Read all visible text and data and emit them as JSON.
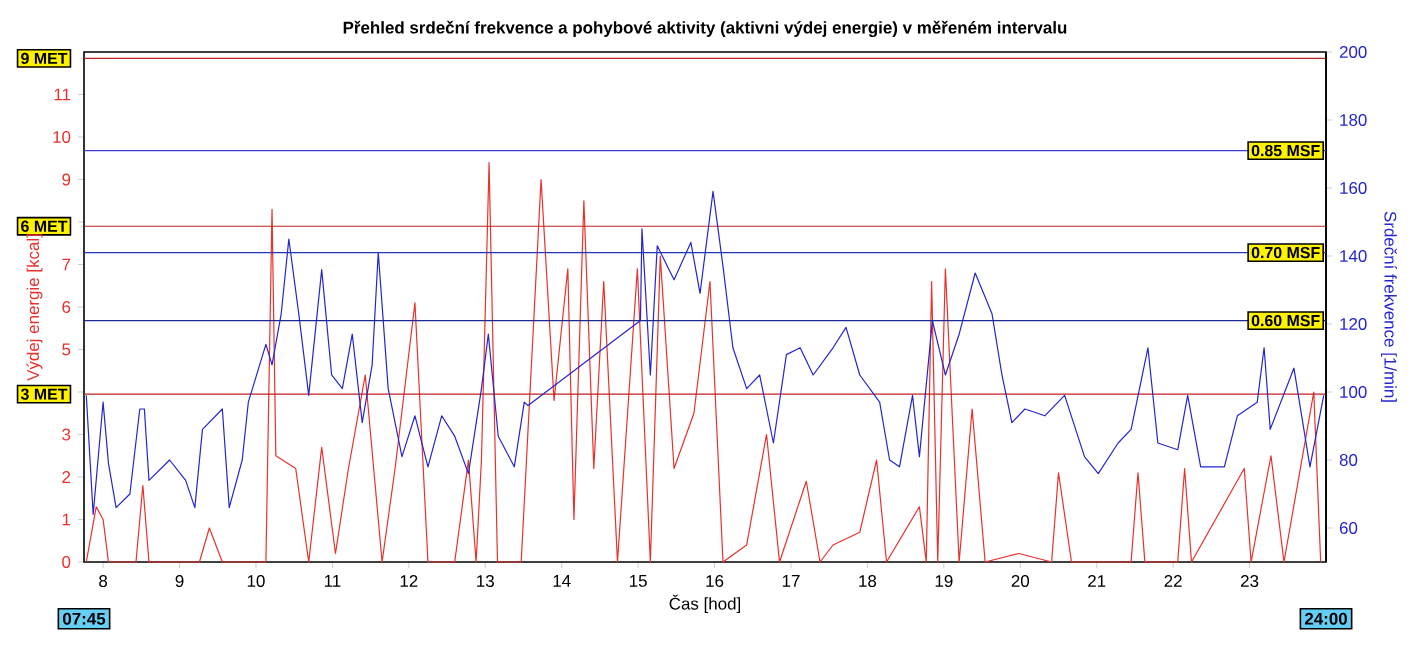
{
  "chart_data": {
    "type": "line",
    "title": "Přehled srdeční frekvence a pohybové aktivity (aktivni výdej energie) v měřeném intervalu",
    "xlabel": "Čas [hod]",
    "ylabel": "Výdej energie [kcal]",
    "y2label": "Srdeční frekvence [1/min]",
    "xlim": [
      7.75,
      24
    ],
    "xticks": [
      8,
      9,
      10,
      11,
      12,
      13,
      14,
      15,
      16,
      17,
      18,
      19,
      20,
      21,
      22,
      23
    ],
    "ylim": [
      0,
      12
    ],
    "yticks": [
      0,
      1,
      2,
      3,
      {
        "value": 4,
        "label": null
      },
      5,
      6,
      7,
      {
        "value": 8,
        "label": null
      },
      9,
      10,
      11
    ],
    "y2lim": [
      50,
      200
    ],
    "y2ticks": [
      60,
      80,
      100,
      120,
      140,
      160,
      180,
      200
    ],
    "series": [
      {
        "color": "#e8302c",
        "x": [
          7.78,
          7.91,
          8.0,
          8.07,
          8.43,
          8.52,
          8.6,
          9.26,
          9.39,
          9.56,
          10.13,
          10.21,
          10.26,
          10.52,
          10.69,
          10.86,
          11.04,
          11.21,
          11.43,
          11.65,
          11.82,
          12.08,
          12.25,
          12.6,
          12.78,
          12.88,
          12.95,
          13.05,
          13.16,
          13.47,
          13.73,
          13.9,
          14.08,
          14.16,
          14.29,
          14.42,
          14.55,
          14.73,
          14.99,
          15.16,
          15.29,
          15.47,
          15.73,
          15.94,
          16.11,
          16.42,
          16.68,
          16.85,
          17.2,
          17.38,
          17.55,
          17.9,
          18.12,
          18.25,
          18.68,
          18.77,
          18.84,
          18.92,
          19.02,
          19.2,
          19.37,
          19.54,
          19.98,
          20.41,
          20.5,
          20.67,
          21.45,
          21.54,
          21.63,
          22.06,
          22.15,
          22.24,
          22.93,
          23.02,
          23.28,
          23.45,
          23.84,
          23.93
        ],
        "values": [
          0,
          1.3,
          1.0,
          0,
          0,
          1.8,
          0,
          0,
          0.8,
          0,
          0,
          8.3,
          2.5,
          2.2,
          0,
          2.7,
          0.2,
          2.2,
          4.4,
          0,
          2.2,
          6.1,
          0,
          0,
          2.4,
          0,
          2.4,
          9.4,
          0,
          0,
          9.0,
          3.8,
          6.9,
          1.0,
          8.5,
          2.2,
          6.6,
          0,
          6.9,
          0,
          7.2,
          2.2,
          3.5,
          6.6,
          0,
          0.4,
          3.0,
          0,
          1.9,
          0,
          0.4,
          0.7,
          2.4,
          0,
          1.3,
          0,
          6.6,
          0,
          6.9,
          0,
          3.6,
          0,
          0.2,
          0,
          2.1,
          0,
          0,
          2.1,
          0,
          0,
          2.2,
          0,
          2.2,
          0,
          2.5,
          0,
          4.0,
          0
        ]
      },
      {
        "color": "#2525d0",
        "axis": "y2",
        "x": [
          7.78,
          7.87,
          8.0,
          8.07,
          8.17,
          8.35,
          8.48,
          8.54,
          8.6,
          8.87,
          9.08,
          9.2,
          9.3,
          9.56,
          9.65,
          9.82,
          9.9,
          10.13,
          10.21,
          10.33,
          10.43,
          10.56,
          10.69,
          10.86,
          10.99,
          11.13,
          11.26,
          11.39,
          11.52,
          11.6,
          11.73,
          11.91,
          12.08,
          12.25,
          12.43,
          12.6,
          12.78,
          12.95,
          13.04,
          13.17,
          13.38,
          13.51,
          13.56,
          15.03,
          15.05,
          15.16,
          15.25,
          15.47,
          15.69,
          15.81,
          15.98,
          16.11,
          16.24,
          16.42,
          16.59,
          16.77,
          16.94,
          17.12,
          17.29,
          17.55,
          17.72,
          17.9,
          18.16,
          18.29,
          18.42,
          18.59,
          18.68,
          18.85,
          19.02,
          19.2,
          19.41,
          19.63,
          19.76,
          19.89,
          20.06,
          20.32,
          20.58,
          20.84,
          21.02,
          21.28,
          21.45,
          21.67,
          21.8,
          22.06,
          22.19,
          22.36,
          22.67,
          22.84,
          23.1,
          23.19,
          23.27,
          23.58,
          23.79,
          23.97
        ],
        "values": [
          99,
          64,
          97,
          79,
          66,
          70,
          95,
          95,
          74,
          80,
          74,
          66,
          89,
          95,
          66,
          80,
          97,
          114,
          108,
          123,
          145,
          123,
          99,
          136,
          105,
          101,
          117,
          91,
          108,
          141,
          101,
          81,
          93,
          78,
          93,
          87,
          76,
          101,
          117,
          87,
          78,
          97,
          96,
          121,
          148,
          105,
          143,
          133,
          144,
          129,
          159,
          137,
          113,
          101,
          105,
          85,
          111,
          113,
          105,
          113,
          119,
          105,
          97,
          80,
          78,
          99,
          81,
          121,
          105,
          117,
          135,
          123,
          105,
          91,
          95,
          93,
          99,
          81,
          76,
          85,
          89,
          113,
          85,
          83,
          99,
          78,
          78,
          93,
          97,
          113,
          89,
          107,
          78,
          99
        ]
      }
    ],
    "ref_lines": [
      {
        "axis": "y",
        "value": 3.95,
        "label": "3 MET",
        "color": "#c02020"
      },
      {
        "axis": "y",
        "value": 7.9,
        "label": "6 MET",
        "color": "#c02020"
      },
      {
        "axis": "y",
        "value": 11.85,
        "label": "9 MET",
        "color": "#c02020"
      },
      {
        "axis": "y2",
        "value": 121,
        "label": "0.60 MSF",
        "color": "#1c2a90"
      },
      {
        "axis": "y2",
        "value": 141,
        "label": "0.70 MSF",
        "color": "#2535b8"
      },
      {
        "axis": "y2",
        "value": 171,
        "label": "0.85 MSF",
        "color": "#3a3ad8"
      }
    ],
    "annotations": [
      "07:45",
      "24:00"
    ]
  }
}
